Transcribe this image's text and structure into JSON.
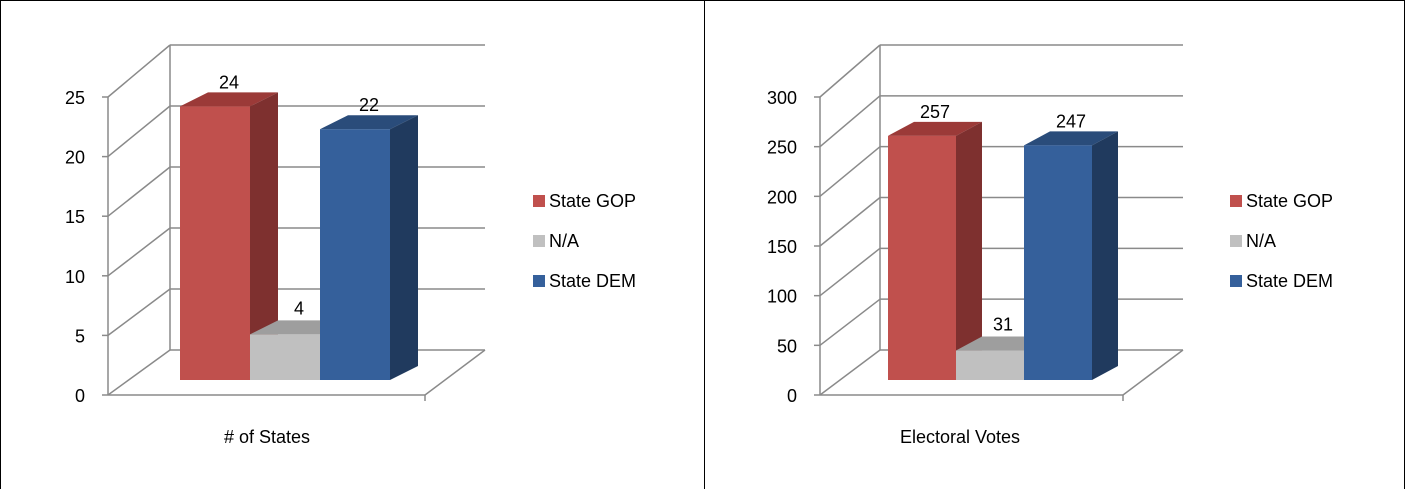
{
  "chart_data": [
    {
      "type": "bar",
      "categories": [
        "# of States"
      ],
      "series": [
        {
          "name": "State GOP",
          "values": [
            24
          ]
        },
        {
          "name": "N/A",
          "values": [
            4
          ]
        },
        {
          "name": "State DEM",
          "values": [
            22
          ]
        }
      ],
      "xlabel": "# of States",
      "ylabel": "",
      "ylim": [
        0,
        25
      ],
      "yticks": [
        0,
        5,
        10,
        15,
        20,
        25
      ],
      "grid": true,
      "legend": "right",
      "style": "3d"
    },
    {
      "type": "bar",
      "categories": [
        "Electoral Votes"
      ],
      "series": [
        {
          "name": "State GOP",
          "values": [
            257
          ]
        },
        {
          "name": "N/A",
          "values": [
            31
          ]
        },
        {
          "name": "State DEM",
          "values": [
            247
          ]
        }
      ],
      "xlabel": "Electoral Votes",
      "ylabel": "",
      "ylim": [
        0,
        300
      ],
      "yticks": [
        0,
        50,
        100,
        150,
        200,
        250,
        300
      ],
      "grid": true,
      "legend": "right",
      "style": "3d"
    }
  ],
  "colors": {
    "series": [
      "#C0504D",
      "#C0C0C0",
      "#35609B"
    ],
    "series_side": [
      "#7E302F",
      "#8C8C8C",
      "#203A5E"
    ],
    "series_top": [
      "#9B3A38",
      "#9E9E9E",
      "#2A4C7A"
    ],
    "grid": "#8A8A8A",
    "text": "#000000"
  }
}
